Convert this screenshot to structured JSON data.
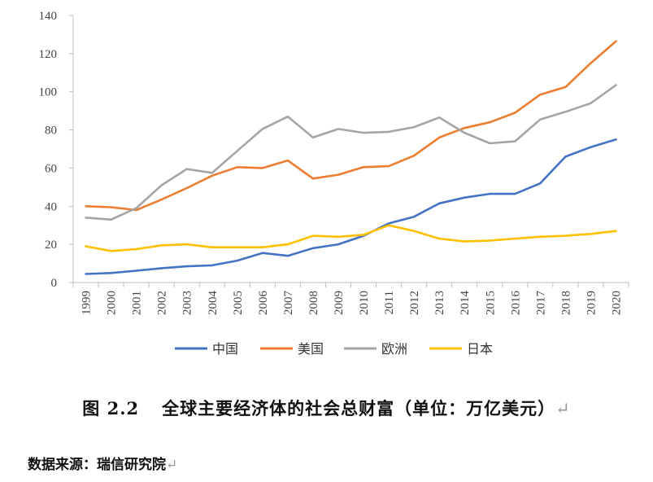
{
  "chart_data": {
    "type": "line",
    "title": "",
    "xlabel": "",
    "ylabel": "",
    "ylim": [
      0,
      140
    ],
    "yticks": [
      0,
      20,
      40,
      60,
      80,
      100,
      120,
      140
    ],
    "grid": false,
    "legend": "bottom",
    "categories": [
      "1999",
      "2000",
      "2001",
      "2002",
      "2003",
      "2004",
      "2005",
      "2006",
      "2007",
      "2008",
      "2009",
      "2010",
      "2011",
      "2012",
      "2013",
      "2014",
      "2015",
      "2016",
      "2017",
      "2018",
      "2019",
      "2020"
    ],
    "series": [
      {
        "name": "中国",
        "color": "#4472c4",
        "values": [
          4.5,
          5,
          6.2,
          7.5,
          8.5,
          9,
          11.5,
          15.5,
          14,
          18,
          20,
          24.5,
          31,
          34.5,
          41.5,
          44.5,
          46.5,
          46.5,
          52,
          66,
          71,
          75
        ]
      },
      {
        "name": "美国",
        "color": "#ed7d31",
        "values": [
          40,
          39.5,
          38,
          43.5,
          49.5,
          56,
          60.5,
          60,
          64,
          54.5,
          56.5,
          60.5,
          61,
          66.5,
          76,
          81,
          84,
          89,
          98.5,
          102.5,
          115,
          126.5
        ]
      },
      {
        "name": "欧洲",
        "color": "#a5a5a5",
        "values": [
          34,
          33,
          39,
          51,
          59.5,
          57.5,
          69,
          80.5,
          87,
          76,
          80.5,
          78.5,
          79,
          81.5,
          86.5,
          78.5,
          73,
          74,
          85.5,
          89.5,
          94,
          103.5
        ]
      },
      {
        "name": "日本",
        "color": "#ffc000",
        "values": [
          19,
          16.5,
          17.5,
          19.5,
          20,
          18.5,
          18.5,
          18.5,
          20,
          24.5,
          24,
          25,
          30,
          27,
          23,
          21.5,
          22,
          23,
          24,
          24.5,
          25.5,
          27
        ]
      }
    ]
  },
  "caption": {
    "figure_no": "图 2.2",
    "title": "全球主要经济体的社会总财富（单位：万亿美元）",
    "mark": "↵"
  },
  "source": {
    "text": "数据来源：瑞信研究院",
    "mark": "↵"
  }
}
